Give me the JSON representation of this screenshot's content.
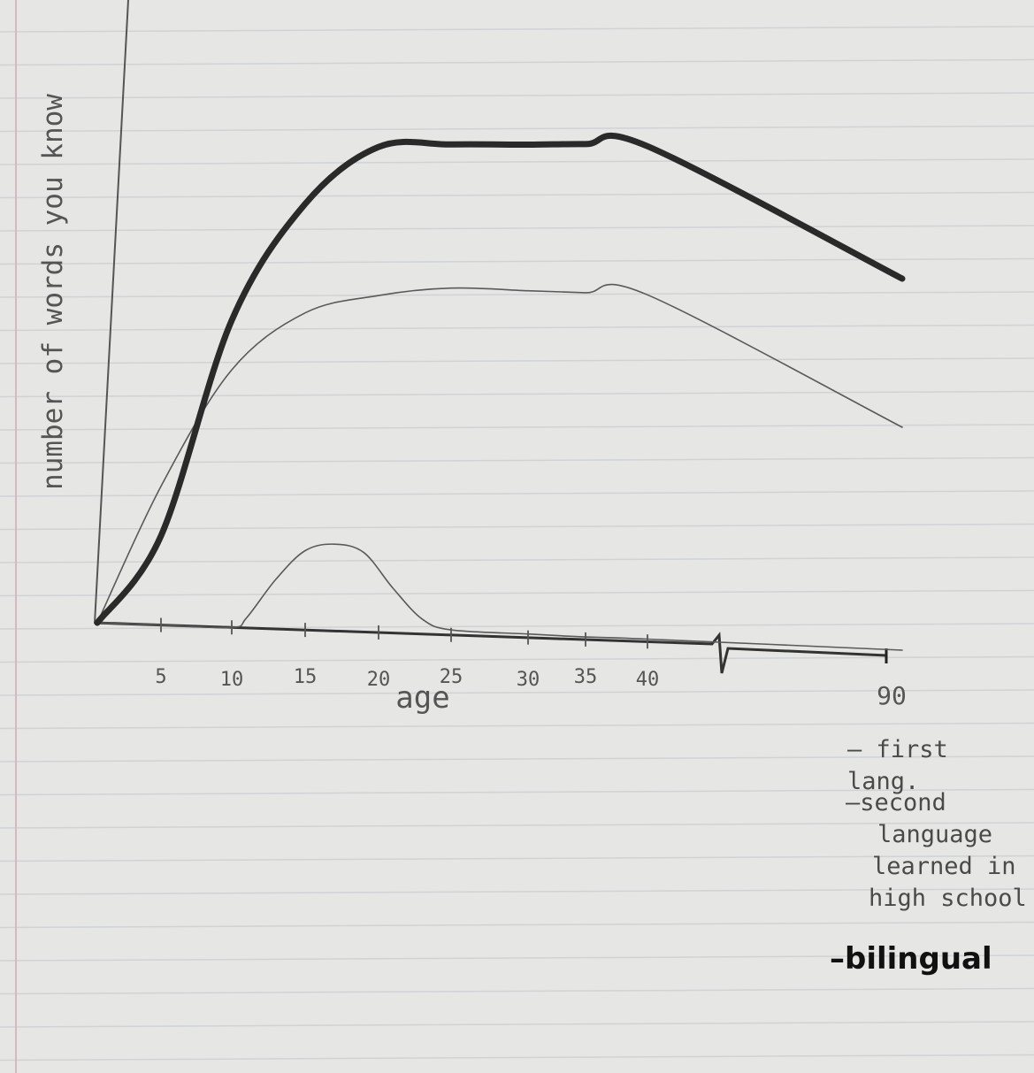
{
  "chart_data": {
    "type": "line",
    "xlabel": "age",
    "ylabel": "number of words you know",
    "x_ticks": [
      "5",
      "10",
      "15",
      "20",
      "25",
      "30",
      "35",
      "40",
      "90"
    ],
    "axis_break_between": [
      "40",
      "90"
    ],
    "grid": false,
    "legend_position": "bottom-right",
    "y_values_unit": "relative (0 = none, 100 = peak bilingual)",
    "series": [
      {
        "name": "first lang.",
        "style": "thin",
        "x": [
          0,
          5,
          10,
          15,
          20,
          25,
          30,
          35,
          40,
          90
        ],
        "y": [
          0,
          28,
          52,
          64,
          68,
          70,
          70,
          70,
          70,
          45
        ]
      },
      {
        "name": "second language learned in high school",
        "style": "thin",
        "x": [
          0,
          5,
          10,
          11,
          13,
          15,
          17,
          19,
          21,
          23,
          25,
          30,
          35,
          40,
          90
        ],
        "y": [
          0,
          0,
          0,
          2,
          10,
          16,
          17.5,
          16,
          9,
          3,
          1,
          0.7,
          0.5,
          0.5,
          0
        ]
      },
      {
        "name": "bilingual",
        "style": "bold",
        "x": [
          0,
          5,
          10,
          15,
          20,
          25,
          30,
          35,
          40,
          90
        ],
        "y": [
          0,
          18,
          62,
          86,
          98,
          99,
          99.5,
          100,
          100,
          75
        ]
      }
    ]
  },
  "legend": {
    "first": "first lang.",
    "second_lines": [
      "second",
      "language",
      "learned in",
      "high school"
    ],
    "bilingual": "bilingual"
  }
}
